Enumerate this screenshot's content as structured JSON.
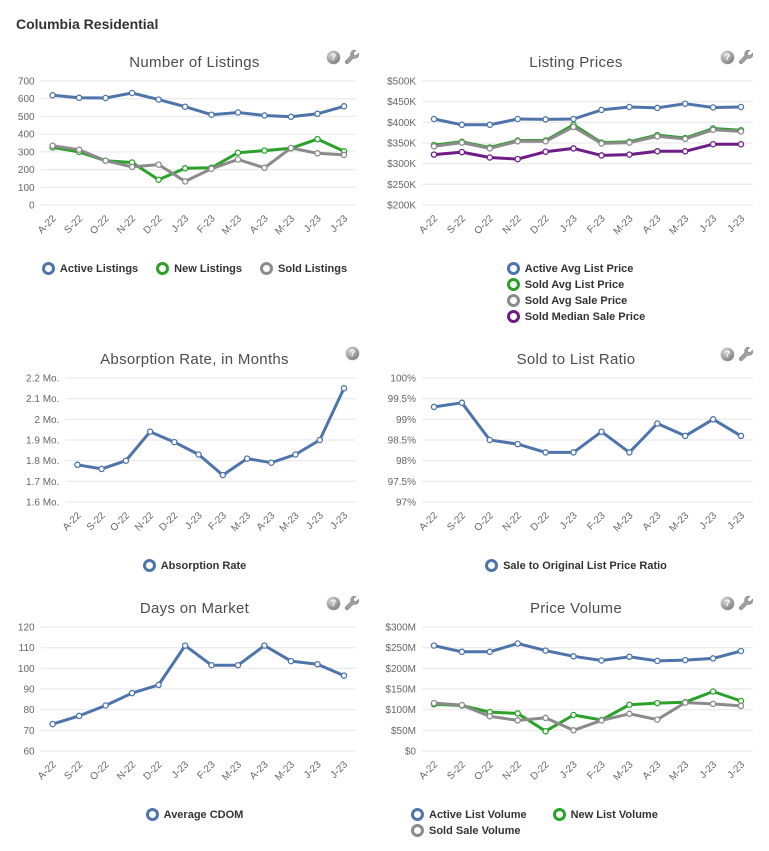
{
  "page": {
    "title": "Columbia Residential"
  },
  "ui": {
    "help_glyph": "?"
  },
  "chart_data": [
    {
      "type": "line",
      "title": "Number of Listings",
      "icons": [
        "help",
        "customize"
      ],
      "legend_layout": "row",
      "categories": [
        "A-22",
        "S-22",
        "O-22",
        "N-22",
        "D-22",
        "J-23",
        "F-23",
        "M-23",
        "A-23",
        "M-23",
        "J-23",
        "J-23"
      ],
      "ylim": [
        0,
        700
      ],
      "ytick_labels": [
        "700",
        "600",
        "500",
        "400",
        "300",
        "200",
        "100",
        "0"
      ],
      "grid": true,
      "legend_position": "bottom",
      "series": [
        {
          "name": "Active Listings",
          "color": "#4d74ab",
          "values": [
            620,
            605,
            604,
            632,
            595,
            555,
            510,
            522,
            505,
            498,
            515,
            557
          ]
        },
        {
          "name": "New Listings",
          "color": "#2aa22a",
          "values": [
            325,
            300,
            250,
            240,
            143,
            207,
            210,
            295,
            307,
            320,
            372,
            303
          ]
        },
        {
          "name": "Sold Listings",
          "color": "#8b8b8b",
          "values": [
            335,
            312,
            250,
            215,
            228,
            133,
            205,
            257,
            210,
            322,
            292,
            283
          ]
        }
      ]
    },
    {
      "type": "line",
      "title": "Listing Prices",
      "icons": [
        "help",
        "customize"
      ],
      "legend_layout": "column",
      "categories": [
        "A-22",
        "S-22",
        "O-22",
        "N-22",
        "D-22",
        "J-23",
        "F-23",
        "M-23",
        "A-23",
        "M-23",
        "J-23",
        "J-23"
      ],
      "ylim": [
        200,
        500
      ],
      "ytick_labels": [
        "$500K",
        "$450K",
        "$400K",
        "$350K",
        "$300K",
        "$250K",
        "$200K"
      ],
      "grid": true,
      "legend_position": "bottom",
      "series": [
        {
          "name": "Active Avg List Price",
          "color": "#4d74ab",
          "values": [
            408,
            394,
            394,
            408,
            407,
            408,
            430,
            437,
            435,
            445,
            436,
            437
          ]
        },
        {
          "name": "Sold Avg List Price",
          "color": "#2aa22a",
          "values": [
            345,
            353,
            339,
            356,
            356,
            394,
            351,
            353,
            369,
            362,
            385,
            381
          ]
        },
        {
          "name": "Sold Avg Sale Price",
          "color": "#8b8b8b",
          "values": [
            342,
            351,
            337,
            354,
            354,
            389,
            349,
            351,
            366,
            360,
            382,
            378
          ]
        },
        {
          "name": "Sold Median Sale Price",
          "color": "#6f1c87",
          "values": [
            322,
            328,
            315,
            311,
            329,
            337,
            320,
            322,
            330,
            330,
            347,
            347
          ]
        }
      ]
    },
    {
      "type": "line",
      "title": "Absorption Rate, in Months",
      "icons": [
        "help"
      ],
      "legend_layout": "row",
      "categories": [
        "A-22",
        "S-22",
        "O-22",
        "N-22",
        "D-22",
        "J-23",
        "F-23",
        "M-23",
        "A-23",
        "M-23",
        "J-23",
        "J-23"
      ],
      "ylim": [
        1.6,
        2.2
      ],
      "ytick_labels": [
        "2.2 Mo.",
        "2.1 Mo.",
        "2 Mo.",
        "1.9 Mo.",
        "1.8 Mo.",
        "1.7 Mo.",
        "1.6 Mo."
      ],
      "grid": true,
      "legend_position": "bottom",
      "series": [
        {
          "name": "Absorption Rate",
          "color": "#4d74ab",
          "values": [
            1.78,
            1.76,
            1.8,
            1.94,
            1.89,
            1.83,
            1.73,
            1.81,
            1.79,
            1.83,
            1.9,
            2.15
          ]
        }
      ]
    },
    {
      "type": "line",
      "title": "Sold to List Ratio",
      "icons": [
        "help",
        "customize"
      ],
      "legend_layout": "row",
      "categories": [
        "A-22",
        "S-22",
        "O-22",
        "N-22",
        "D-22",
        "J-23",
        "F-23",
        "M-23",
        "A-23",
        "M-23",
        "J-23",
        "J-23"
      ],
      "ylim": [
        97,
        100
      ],
      "ytick_labels": [
        "100%",
        "99.5%",
        "99%",
        "98.5%",
        "98%",
        "97.5%",
        "97%"
      ],
      "grid": true,
      "legend_position": "bottom",
      "series": [
        {
          "name": "Sale to Original List Price Ratio",
          "color": "#4d74ab",
          "values": [
            99.3,
            99.4,
            98.5,
            98.4,
            98.2,
            98.2,
            98.7,
            98.2,
            98.9,
            98.6,
            99.0,
            98.6
          ]
        }
      ]
    },
    {
      "type": "line",
      "title": "Days on Market",
      "icons": [
        "help",
        "customize"
      ],
      "legend_layout": "row",
      "categories": [
        "A-22",
        "S-22",
        "O-22",
        "N-22",
        "D-22",
        "J-23",
        "F-23",
        "M-23",
        "A-23",
        "M-23",
        "J-23",
        "J-23"
      ],
      "ylim": [
        60,
        120
      ],
      "ytick_labels": [
        "120",
        "110",
        "100",
        "90",
        "80",
        "70",
        "60"
      ],
      "grid": true,
      "legend_position": "bottom",
      "series": [
        {
          "name": "Average CDOM",
          "color": "#4d74ab",
          "values": [
            73,
            77,
            82,
            88,
            92,
            111,
            101.5,
            101.5,
            111,
            103.5,
            102,
            96.5
          ]
        }
      ]
    },
    {
      "type": "line",
      "title": "Price Volume",
      "icons": [
        "help",
        "customize"
      ],
      "legend_layout": "wrap",
      "categories": [
        "A-22",
        "S-22",
        "O-22",
        "N-22",
        "D-22",
        "J-23",
        "F-23",
        "M-23",
        "A-23",
        "M-23",
        "J-23",
        "J-23"
      ],
      "ylim": [
        0,
        300
      ],
      "ytick_labels": [
        "$300M",
        "$250M",
        "$200M",
        "$150M",
        "$100M",
        "$50M",
        "$0"
      ],
      "grid": true,
      "legend_position": "bottom",
      "series": [
        {
          "name": "Active List Volume",
          "color": "#4d74ab",
          "values": [
            255,
            240,
            240,
            260,
            243,
            229,
            219,
            228,
            218,
            220,
            224,
            242
          ]
        },
        {
          "name": "New List Volume",
          "color": "#2aa22a",
          "values": [
            113,
            110,
            94,
            91,
            48,
            87,
            75,
            112,
            116,
            118,
            144,
            121
          ]
        },
        {
          "name": "Sold Sale Volume",
          "color": "#8b8b8b",
          "values": [
            116,
            111,
            84,
            74,
            80,
            50,
            74,
            90,
            76,
            117,
            114,
            109
          ]
        }
      ]
    }
  ]
}
